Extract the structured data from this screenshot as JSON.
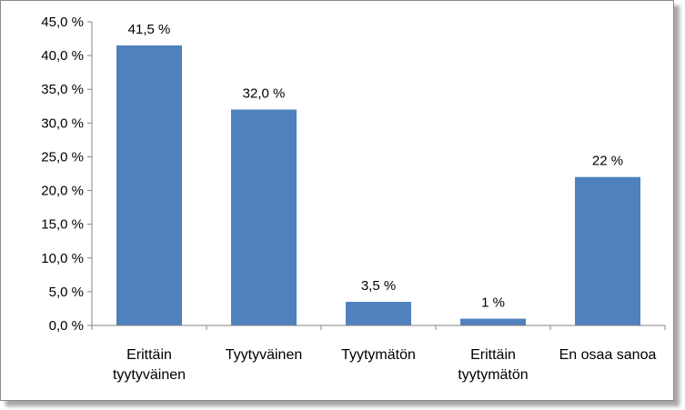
{
  "chart_data": {
    "type": "bar",
    "categories": [
      [
        "Erittäin",
        "tyytyväinen"
      ],
      [
        "Tyytyväinen"
      ],
      [
        "Tyytymätön"
      ],
      [
        "Erittäin",
        "tyytymätön"
      ],
      [
        "En osaa sanoa"
      ]
    ],
    "values": [
      41.5,
      32.0,
      3.5,
      1,
      22
    ],
    "data_labels": [
      "41,5 %",
      "32,0 %",
      "3,5 %",
      "1 %",
      "22 %"
    ],
    "title": "",
    "xlabel": "",
    "ylabel": "",
    "ylim": [
      0,
      45
    ],
    "yticks": [
      0,
      5,
      10,
      15,
      20,
      25,
      30,
      35,
      40,
      45
    ],
    "ytick_labels": [
      "0,0 %",
      "5,0 %",
      "10,0 %",
      "15,0 %",
      "20,0 %",
      "25,0 %",
      "30,0 %",
      "35,0 %",
      "40,0 %",
      "45,0 %"
    ],
    "bar_color": "#4f81bd",
    "grid": false,
    "legend": "none"
  }
}
